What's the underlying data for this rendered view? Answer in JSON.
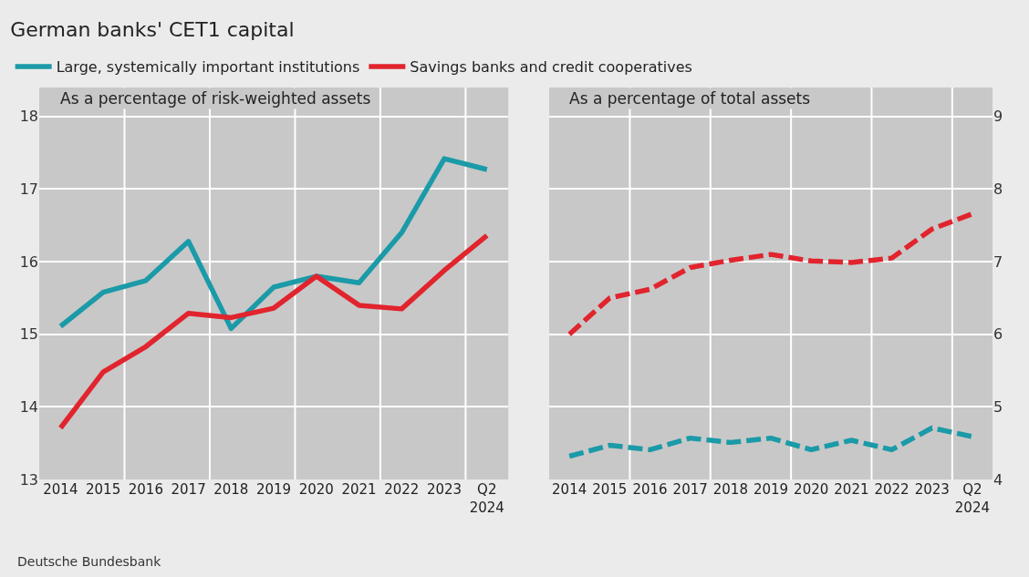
{
  "chart_data": [
    {
      "type": "line",
      "title": "German banks' CET1 capital",
      "subtitle": "As a percentage of risk-weighted assets",
      "categories": [
        "2014",
        "2015",
        "2016",
        "2017",
        "2018",
        "2019",
        "2020",
        "2021",
        "2022",
        "2023",
        "Q2\n2024"
      ],
      "series": [
        {
          "name": "Large, systemically important institutions",
          "color": "#1b9aa8",
          "values": [
            15.11,
            15.58,
            15.74,
            16.28,
            15.08,
            15.65,
            15.8,
            15.71,
            16.4,
            17.42,
            17.27
          ]
        },
        {
          "name": "Savings banks and credit cooperatives",
          "color": "#e1242d",
          "values": [
            13.71,
            14.48,
            14.83,
            15.29,
            15.23,
            15.36,
            15.8,
            15.4,
            15.35,
            15.88,
            16.36
          ]
        }
      ],
      "ylim": [
        13,
        18.4
      ],
      "yticks": [
        13,
        14,
        15,
        16,
        17,
        18
      ],
      "grid": true,
      "legend": "top",
      "line_style": "solid",
      "marker": "none",
      "annotations": [
        "Deutsche Bundesbank"
      ]
    },
    {
      "type": "line",
      "subtitle": "As a percentage of total assets",
      "categories": [
        "2014",
        "2015",
        "2016",
        "2017",
        "2018",
        "2019",
        "2020",
        "2021",
        "2022",
        "2023",
        "Q2\n2024"
      ],
      "series": [
        {
          "color": "#1b9aa8",
          "values": [
            4.32,
            4.47,
            4.41,
            4.57,
            4.51,
            4.57,
            4.41,
            4.54,
            4.41,
            4.71,
            4.59
          ]
        },
        {
          "color": "#e1242d",
          "values": [
            6.0,
            6.5,
            6.62,
            6.92,
            7.02,
            7.1,
            7.01,
            6.99,
            7.05,
            7.45,
            7.66
          ]
        }
      ],
      "ylim": [
        4,
        9.4
      ],
      "yticks": [
        4,
        5,
        6,
        7,
        8,
        9
      ],
      "grid": true,
      "legend": false,
      "line_style": "dashed",
      "marker": "none"
    }
  ]
}
